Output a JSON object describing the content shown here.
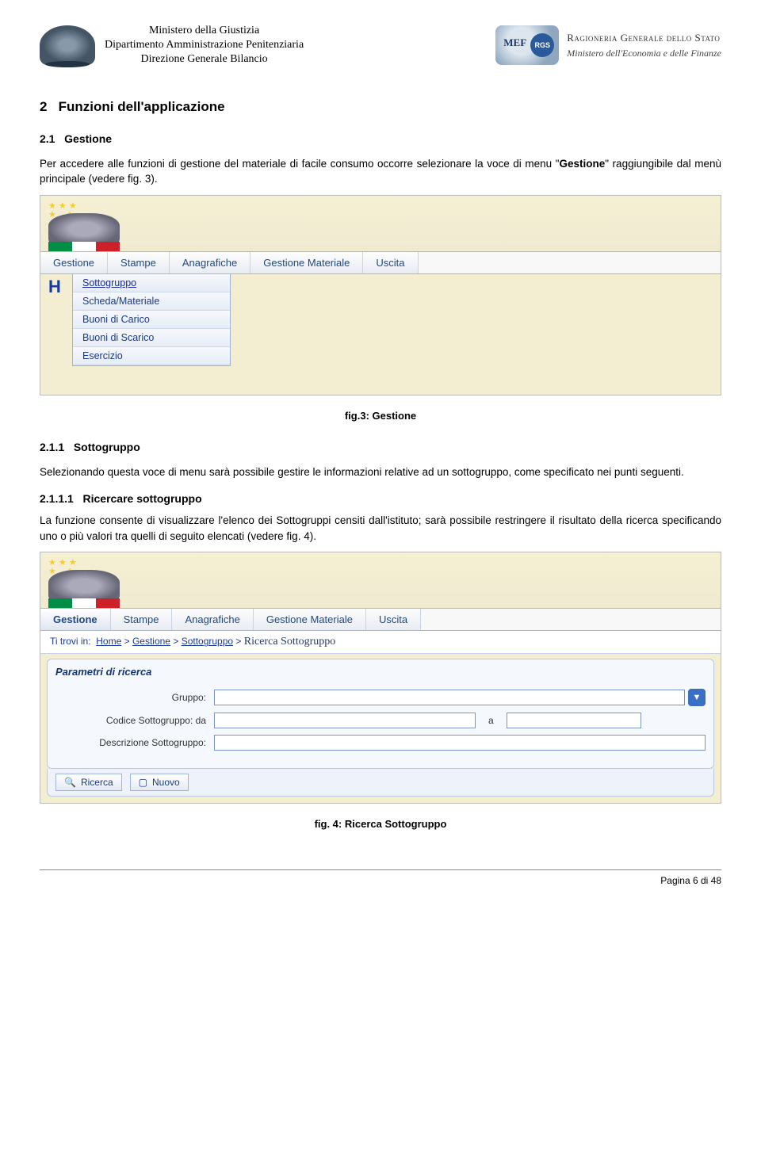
{
  "header": {
    "ministry_line1": "Ministero della Giustizia",
    "ministry_line2": "Dipartimento Amministrazione Penitenziaria",
    "ministry_line3": "Direzione Generale Bilancio",
    "mef_badge": "MEF",
    "rgs_badge": "RGS",
    "rgs_line1": "Ragioneria Generale dello Stato",
    "rgs_line2": "Ministero dell'Economia e delle Finanze"
  },
  "section2": {
    "num": "2",
    "title": "Funzioni dell'applicazione"
  },
  "section21": {
    "num": "2.1",
    "title": "Gestione",
    "para": "Per accedere alle funzioni di gestione del materiale di facile consumo occorre selezionare la voce di menu \"",
    "bold": "Gestione",
    "para_end": "\" raggiungibile dal menù principale (vedere fig. 3)."
  },
  "fig3": {
    "caption": "fig.3: Gestione",
    "menu_tabs": [
      "Gestione",
      "Stampe",
      "Anagrafiche",
      "Gestione Materiale",
      "Uscita"
    ],
    "home_letter": "H",
    "dropdown_items": [
      "Sottogruppo",
      "Scheda/Materiale",
      "Buoni di Carico",
      "Buoni di Scarico",
      "Esercizio"
    ]
  },
  "section211": {
    "num": "2.1.1",
    "title": "Sottogruppo",
    "para": "Selezionando questa voce di menu sarà possibile gestire le informazioni relative ad un sottogruppo, come specificato nei punti seguenti."
  },
  "section2111": {
    "num": "2.1.1.1",
    "title": "Ricercare sottogruppo",
    "para": "La funzione consente di visualizzare l'elenco dei Sottogruppi censiti dall'istituto; sarà possibile restringere il risultato della ricerca specificando uno o più valori tra quelli di seguito elencati (vedere fig. 4)."
  },
  "fig4": {
    "caption": "fig. 4: Ricerca Sottogruppo",
    "menu_tabs": [
      "Gestione",
      "Stampe",
      "Anagrafiche",
      "Gestione Materiale",
      "Uscita"
    ],
    "breadcrumb_prefix": "Ti trovi in:",
    "bc_home": "Home",
    "bc_gest": "Gestione",
    "bc_sotto": "Sottogruppo",
    "bc_sep": ">",
    "bc_current": "Ricerca Sottogruppo",
    "panel_title": "Parametri di ricerca",
    "lbl_gruppo": "Gruppo:",
    "lbl_codice": "Codice Sottogruppo: da",
    "lbl_a": "a",
    "lbl_descr": "Descrizione Sottogruppo:",
    "btn_ricerca": "Ricerca",
    "btn_nuovo": "Nuovo",
    "dd_icon": "▼"
  },
  "footer": {
    "text": "Pagina 6 di 48"
  },
  "colors": {
    "page_bg": "#ffffff",
    "screenshot_bg": "#f3eed1",
    "menu_blue": "#204a87",
    "panel_bg": "#f5f9fd"
  }
}
